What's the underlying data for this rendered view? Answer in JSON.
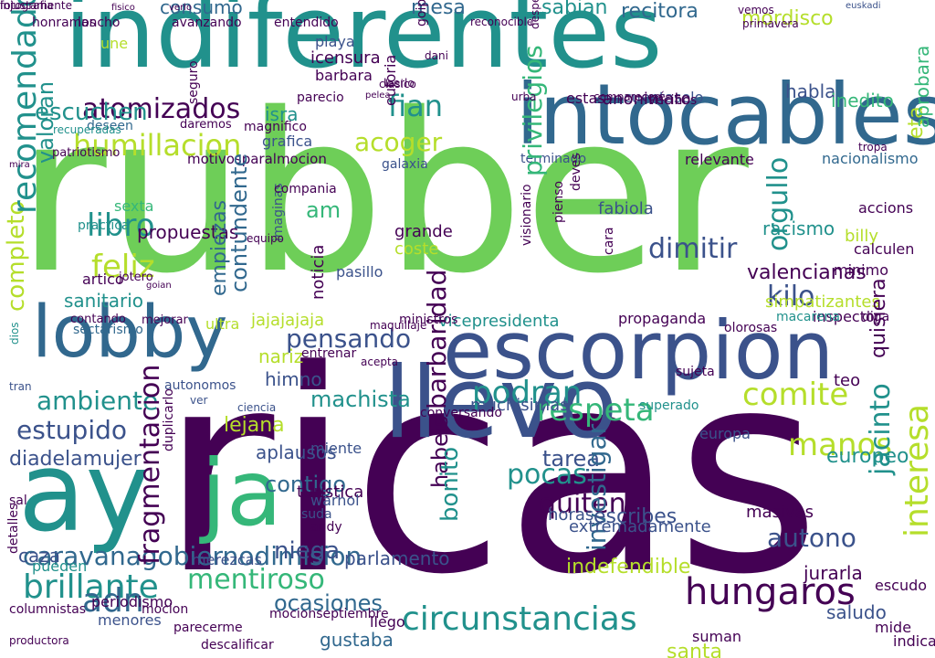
{
  "palette": {
    "dark_purple": "#440154",
    "indigo": "#3b528b",
    "blue": "#31688e",
    "teal": "#21918c",
    "sea_green": "#35b779",
    "light_green": "#6ece58",
    "lime": "#b5de2b",
    "yellow": "#fde725"
  },
  "words": [
    {
      "text": "rubber",
      "color": "#6ece58"
    },
    {
      "text": "ricas",
      "color": "#440154"
    },
    {
      "text": "indiferentes",
      "color": "#21918c"
    },
    {
      "text": "intocables",
      "color": "#31688e"
    },
    {
      "text": "escorpion",
      "color": "#3b528b"
    },
    {
      "text": "lobby",
      "color": "#31688e"
    },
    {
      "text": "llevo",
      "color": "#3b528b"
    },
    {
      "text": "ay",
      "color": "#21918c"
    },
    {
      "text": "ja",
      "color": "#35b779"
    },
    {
      "text": "atomizados",
      "color": "#440154"
    },
    {
      "text": "humillacion",
      "color": "#b5de2b"
    },
    {
      "text": "ambiente",
      "color": "#21918c"
    },
    {
      "text": "estupido",
      "color": "#3b528b"
    },
    {
      "text": "diadelamujer",
      "color": "#3b528b"
    },
    {
      "text": "caravanagobiernodimision",
      "color": "#31688e"
    },
    {
      "text": "brillante",
      "color": "#21918c"
    },
    {
      "text": "mentiroso",
      "color": "#35b779"
    },
    {
      "text": "circunstancias",
      "color": "#21918c"
    },
    {
      "text": "hungaros",
      "color": "#440154"
    },
    {
      "text": "autono",
      "color": "#3b528b"
    },
    {
      "text": "respeta",
      "color": "#35b779"
    },
    {
      "text": "podran",
      "color": "#21918c"
    },
    {
      "text": "comite",
      "color": "#b5de2b"
    },
    {
      "text": "pensando",
      "color": "#3b528b"
    },
    {
      "text": "contigo",
      "color": "#31688e"
    },
    {
      "text": "niega",
      "color": "#3b528b"
    },
    {
      "text": "quiten",
      "color": "#440154"
    },
    {
      "text": "pocas",
      "color": "#21918c"
    },
    {
      "text": "tarea",
      "color": "#3b528b"
    },
    {
      "text": "adn",
      "color": "#31688e"
    },
    {
      "text": "kilo",
      "color": "#3b528b"
    },
    {
      "text": "feliz",
      "color": "#b5de2b"
    },
    {
      "text": "libro",
      "color": "#21918c"
    },
    {
      "text": "fian",
      "color": "#21918c"
    },
    {
      "text": "acoger",
      "color": "#b5de2b"
    },
    {
      "text": "dimitir",
      "color": "#3b528b"
    },
    {
      "text": "consumo",
      "color": "#31688e"
    },
    {
      "text": "mesa",
      "color": "#31688e"
    },
    {
      "text": "sabian",
      "color": "#21918c"
    },
    {
      "text": "recitora",
      "color": "#31688e"
    },
    {
      "text": "mordisco",
      "color": "#b5de2b"
    },
    {
      "text": "euskadi",
      "color": "#3b528b"
    },
    {
      "text": "sanitario",
      "color": "#21918c"
    },
    {
      "text": "manos",
      "color": "#b5de2b"
    },
    {
      "text": "machista",
      "color": "#21918c"
    },
    {
      "text": "indefendible",
      "color": "#b5de2b"
    },
    {
      "text": "ocasiones",
      "color": "#31688e"
    },
    {
      "text": "parlamento",
      "color": "#3b528b"
    },
    {
      "text": "gustaba",
      "color": "#31688e"
    },
    {
      "text": "saludo",
      "color": "#3b528b"
    },
    {
      "text": "am",
      "color": "#35b779"
    },
    {
      "text": "isra",
      "color": "#21918c"
    },
    {
      "text": "propaganda",
      "color": "#440154"
    },
    {
      "text": "vicepresidenta",
      "color": "#21918c"
    },
    {
      "text": "jajajajaja",
      "color": "#b5de2b"
    },
    {
      "text": "himno",
      "color": "#3b528b"
    },
    {
      "text": "nariz",
      "color": "#b5de2b"
    },
    {
      "text": "europeo",
      "color": "#21918c"
    },
    {
      "text": "habla",
      "color": "#3b528b"
    },
    {
      "text": "cuentaselo",
      "color": "#3b528b"
    },
    {
      "text": "inedito",
      "color": "#35b779"
    },
    {
      "text": "nacionalismo",
      "color": "#31688e"
    },
    {
      "text": "racismo",
      "color": "#21918c"
    },
    {
      "text": "billy",
      "color": "#b5de2b"
    },
    {
      "text": "calculen",
      "color": "#440154"
    },
    {
      "text": "minimo",
      "color": "#440154"
    },
    {
      "text": "accions",
      "color": "#440154"
    },
    {
      "text": "inspector",
      "color": "#440154"
    },
    {
      "text": "simpatizantes",
      "color": "#b5de2b"
    },
    {
      "text": "fabiola",
      "color": "#3b528b"
    },
    {
      "text": "galaxia",
      "color": "#3b528b"
    },
    {
      "text": "terminado",
      "color": "#3b528b"
    },
    {
      "text": "relevante",
      "color": "#440154"
    },
    {
      "text": "grafica",
      "color": "#3b528b"
    },
    {
      "text": "patriotismo",
      "color": "#440154"
    },
    {
      "text": "motivosparalmocion",
      "color": "#440154"
    },
    {
      "text": "magnifico",
      "color": "#440154"
    },
    {
      "text": "daremos",
      "color": "#440154"
    },
    {
      "text": "deseen",
      "color": "#31688e"
    },
    {
      "text": "recuperadas",
      "color": "#21918c"
    },
    {
      "text": "propuestas",
      "color": "#440154"
    },
    {
      "text": "sexta",
      "color": "#35b779"
    },
    {
      "text": "practica",
      "color": "#21918c"
    },
    {
      "text": "artico",
      "color": "#440154"
    },
    {
      "text": "jotero",
      "color": "#440154"
    },
    {
      "text": "goian",
      "color": "#440154"
    },
    {
      "text": "contando",
      "color": "#440154"
    },
    {
      "text": "mejorar",
      "color": "#440154"
    },
    {
      "text": "sectarismo",
      "color": "#31688e"
    },
    {
      "text": "ultra",
      "color": "#b5de2b"
    },
    {
      "text": "ministros",
      "color": "#440154"
    },
    {
      "text": "autonomos",
      "color": "#3b528b"
    },
    {
      "text": "ver",
      "color": "#3b528b"
    },
    {
      "text": "ciencia",
      "color": "#3b528b"
    },
    {
      "text": "lejana",
      "color": "#b5de2b"
    },
    {
      "text": "aplausos",
      "color": "#3b528b"
    },
    {
      "text": "miente",
      "color": "#3b528b"
    },
    {
      "text": "turistica",
      "color": "#440154"
    },
    {
      "text": "warhol",
      "color": "#3b528b"
    },
    {
      "text": "suda",
      "color": "#3b528b"
    },
    {
      "text": "andy",
      "color": "#440154"
    },
    {
      "text": "duplicarlo",
      "color": "#440154"
    },
    {
      "text": "fragmentacion",
      "color": "#440154"
    },
    {
      "text": "caza",
      "color": "#3b528b"
    },
    {
      "text": "pueden",
      "color": "#21918c"
    },
    {
      "text": "periodismo",
      "color": "#440154"
    },
    {
      "text": "menores",
      "color": "#3b528b"
    },
    {
      "text": "mocion",
      "color": "#440154"
    },
    {
      "text": "parecerme",
      "color": "#440154"
    },
    {
      "text": "descalificar",
      "color": "#440154"
    },
    {
      "text": "mocionseptiembre",
      "color": "#440154"
    },
    {
      "text": "llego",
      "color": "#440154"
    },
    {
      "text": "merezcas",
      "color": "#3b528b"
    },
    {
      "text": "muchisimas",
      "color": "#3b528b"
    },
    {
      "text": "conversando",
      "color": "#440154"
    },
    {
      "text": "habeis",
      "color": "#440154"
    },
    {
      "text": "bonito",
      "color": "#21918c"
    },
    {
      "text": "barbaridad",
      "color": "#440154"
    },
    {
      "text": "investigar",
      "color": "#31688e"
    },
    {
      "text": "escribes",
      "color": "#3b528b"
    },
    {
      "text": "horas",
      "color": "#3b528b"
    },
    {
      "text": "superado",
      "color": "#21918c"
    },
    {
      "text": "masivas",
      "color": "#440154"
    },
    {
      "text": "quisiera",
      "color": "#440154"
    },
    {
      "text": "jacinto",
      "color": "#21918c"
    },
    {
      "text": "interesa",
      "color": "#b5de2b"
    },
    {
      "text": "orgullo",
      "color": "#21918c"
    },
    {
      "text": "contundente",
      "color": "#31688e"
    },
    {
      "text": "empiezas",
      "color": "#31688e"
    },
    {
      "text": "completo",
      "color": "#b5de2b"
    },
    {
      "text": "recomendado",
      "color": "#21918c"
    },
    {
      "text": "valoran",
      "color": "#21918c"
    },
    {
      "text": "escuchen",
      "color": "#21918c"
    },
    {
      "text": "une",
      "color": "#b5de2b"
    },
    {
      "text": "eta",
      "color": "#b5de2b"
    },
    {
      "text": "aprobara",
      "color": "#35b779"
    },
    {
      "text": "privilegios",
      "color": "#35b779"
    },
    {
      "text": "icensura",
      "color": "#440154"
    },
    {
      "text": "playa",
      "color": "#3b528b"
    },
    {
      "text": "barbara",
      "color": "#440154"
    },
    {
      "text": "parecio",
      "color": "#440154"
    },
    {
      "text": "anonimato",
      "color": "#440154"
    },
    {
      "text": "vecinos",
      "color": "#440154"
    },
    {
      "text": "estas",
      "color": "#440154"
    },
    {
      "text": "grande",
      "color": "#440154"
    },
    {
      "text": "coste",
      "color": "#b5de2b"
    },
    {
      "text": "pasillo",
      "color": "#3b528b"
    },
    {
      "text": "noticia",
      "color": "#440154"
    },
    {
      "text": "imaginas",
      "color": "#3b528b"
    },
    {
      "text": "valencianas",
      "color": "#440154"
    },
    {
      "text": "macarena",
      "color": "#21918c"
    },
    {
      "text": "diga",
      "color": "#440154"
    },
    {
      "text": "sujeta",
      "color": "#440154"
    },
    {
      "text": "teo",
      "color": "#440154"
    },
    {
      "text": "europa",
      "color": "#3b528b"
    },
    {
      "text": "jurarla",
      "color": "#440154"
    },
    {
      "text": "escudo",
      "color": "#440154"
    },
    {
      "text": "mide",
      "color": "#440154"
    },
    {
      "text": "indica",
      "color": "#440154"
    },
    {
      "text": "suman",
      "color": "#440154"
    },
    {
      "text": "santa",
      "color": "#b5de2b"
    },
    {
      "text": "extremadamente",
      "color": "#3b528b"
    },
    {
      "text": "tran",
      "color": "#3b528b"
    },
    {
      "text": "entrenar",
      "color": "#440154"
    },
    {
      "text": "dios",
      "color": "#21918c"
    },
    {
      "text": "sal",
      "color": "#440154"
    },
    {
      "text": "detalles",
      "color": "#440154"
    },
    {
      "text": "productora",
      "color": "#440154"
    },
    {
      "text": "columnistas",
      "color": "#440154"
    },
    {
      "text": "mira",
      "color": "#440154"
    },
    {
      "text": "honramos",
      "color": "#440154"
    },
    {
      "text": "lancho",
      "color": "#440154"
    },
    {
      "text": "avanzando",
      "color": "#440154"
    },
    {
      "text": "entendido",
      "color": "#440154"
    },
    {
      "text": "leerlo",
      "color": "#440154"
    },
    {
      "text": "pelea",
      "color": "#440154"
    },
    {
      "text": "urba",
      "color": "#440154"
    },
    {
      "text": "compareceré",
      "color": "#440154"
    },
    {
      "text": "clasico",
      "color": "#440154"
    },
    {
      "text": "vemos",
      "color": "#440154"
    },
    {
      "text": "primavera",
      "color": "#440154"
    },
    {
      "text": "tropa",
      "color": "#440154"
    },
    {
      "text": "seguro",
      "color": "#440154"
    },
    {
      "text": "euforia",
      "color": "#440154"
    },
    {
      "text": "compania",
      "color": "#440154"
    },
    {
      "text": "maquillaje",
      "color": "#440154"
    },
    {
      "text": "pienso",
      "color": "#440154"
    },
    {
      "text": "deves",
      "color": "#440154"
    },
    {
      "text": "cara",
      "color": "#440154"
    },
    {
      "text": "visionario",
      "color": "#440154"
    },
    {
      "text": "reconocible",
      "color": "#440154"
    },
    {
      "text": "goipologia",
      "color": "#440154"
    },
    {
      "text": "despedida",
      "color": "#440154"
    },
    {
      "text": "olorosas",
      "color": "#440154"
    },
    {
      "text": "acepta",
      "color": "#440154"
    },
    {
      "text": "fisico",
      "color": "#440154"
    },
    {
      "text": "verlo",
      "color": "#440154"
    },
    {
      "text": "dani",
      "color": "#440154"
    },
    {
      "text": "equipo",
      "color": "#440154"
    },
    {
      "text": "injustamente",
      "color": "#440154"
    },
    {
      "text": "fotografia",
      "color": "#440154"
    }
  ]
}
